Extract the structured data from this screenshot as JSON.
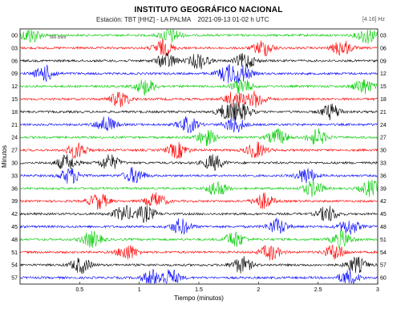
{
  "header": {
    "title": "INSTITUTO GEOGRÁFICO NACIONAL",
    "station": "Estación: TBT [HHZ] - LA PALMA",
    "datetime": "2021-09-13 01-02 h UTC",
    "filter": "[4.16] Hz"
  },
  "chart_data": {
    "type": "line",
    "title": "INSTITUTO GEOGRÁFICO NACIONAL",
    "xlabel": "Tiempo (minutos)",
    "ylabel": "Minutos",
    "xlim": [
      0,
      3
    ],
    "x_ticks": [
      "0.5",
      "1",
      "1.5",
      "2",
      "2.5",
      "3"
    ],
    "x_tick_values": [
      0.5,
      1,
      1.5,
      2,
      2.5,
      3
    ],
    "left_row_labels": [
      "00",
      "03",
      "06",
      "09",
      "12",
      "15",
      "18",
      "21",
      "24",
      "27",
      "30",
      "33",
      "36",
      "39",
      "42",
      "45",
      "48",
      "51",
      "54",
      "57"
    ],
    "right_row_labels": [
      "03",
      "06",
      "09",
      "12",
      "15",
      "18",
      "21",
      "24",
      "27",
      "30",
      "33",
      "36",
      "39",
      "42",
      "45",
      "48",
      "51",
      "54",
      "57",
      "60"
    ],
    "scale_label": "500 cnt/s",
    "trace_colors": [
      "#00cc00",
      "#ff0000",
      "#000000",
      "#0000ff"
    ],
    "grid": false
  }
}
